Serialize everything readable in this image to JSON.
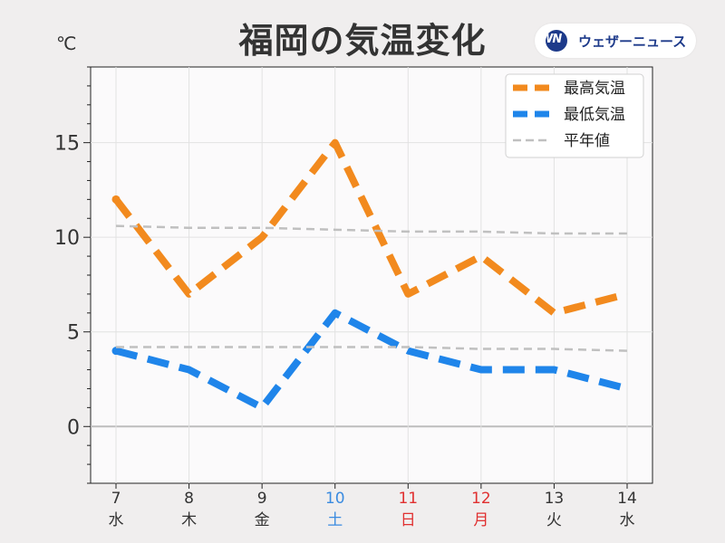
{
  "header": {
    "title": "福岡の気温変化",
    "unit": "℃",
    "brand": "ウェザーニュース",
    "logo_text": "WN"
  },
  "colors": {
    "high": "#f28a1e",
    "low": "#1f85ea",
    "normal": "#c0c0c0",
    "saturday": "#3a8be0",
    "holiday": "#e03030",
    "weekday": "#333333"
  },
  "chart_data": {
    "type": "line",
    "title": "福岡の気温変化",
    "ylabel": "℃",
    "ylim": [
      -3,
      19
    ],
    "yticks": [
      0,
      5,
      10,
      15
    ],
    "grid": true,
    "legend_position": "top-right",
    "categories": [
      {
        "date": "7",
        "day": "水",
        "kind": "weekday"
      },
      {
        "date": "8",
        "day": "木",
        "kind": "weekday"
      },
      {
        "date": "9",
        "day": "金",
        "kind": "weekday"
      },
      {
        "date": "10",
        "day": "土",
        "kind": "saturday"
      },
      {
        "date": "11",
        "day": "日",
        "kind": "holiday"
      },
      {
        "date": "12",
        "day": "月",
        "kind": "holiday"
      },
      {
        "date": "13",
        "day": "火",
        "kind": "weekday"
      },
      {
        "date": "14",
        "day": "水",
        "kind": "weekday"
      }
    ],
    "series": [
      {
        "name": "最高気温",
        "color": "#f28a1e",
        "style": "dashed-thick",
        "values": [
          12,
          7,
          10,
          15,
          7,
          9,
          6,
          7
        ]
      },
      {
        "name": "最低気温",
        "color": "#1f85ea",
        "style": "dashed-thick",
        "values": [
          4,
          3,
          1,
          6,
          4,
          3,
          3,
          2
        ]
      },
      {
        "name": "平年値",
        "color": "#c0c0c0",
        "style": "dashed-thin",
        "values": [
          10.6,
          10.5,
          10.5,
          10.4,
          10.3,
          10.3,
          10.2,
          10.2
        ]
      },
      {
        "name": "平年値",
        "color": "#c0c0c0",
        "style": "dashed-thin",
        "values": [
          4.2,
          4.2,
          4.2,
          4.2,
          4.2,
          4.1,
          4.1,
          4.0
        ]
      }
    ]
  }
}
